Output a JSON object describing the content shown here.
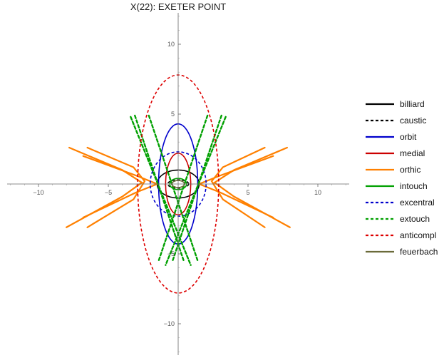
{
  "chart_data": {
    "type": "line",
    "title": "X(22): EXETER POINT",
    "xlabel": "",
    "ylabel": "",
    "xlim": [
      -12.3,
      12.0
    ],
    "ylim": [
      -12.3,
      12.3
    ],
    "x_ticks": [
      -10,
      -5,
      5,
      10
    ],
    "y_ticks": [
      10,
      5,
      -5,
      -10
    ],
    "x_tick_labels": [
      "−10",
      "−5",
      "5",
      "10"
    ],
    "y_tick_labels": [
      "10",
      "5",
      "−5",
      "−10"
    ],
    "grid": false,
    "legend_position": "right",
    "series": [
      {
        "name": "billiard",
        "color": "#000000",
        "dashed": false,
        "kind": "ellipse",
        "a": 1.5,
        "b": 1.0
      },
      {
        "name": "caustic",
        "color": "#000000",
        "dashed": true,
        "kind": "ellipse",
        "a": 0.75,
        "b": 0.3
      },
      {
        "name": "orbit",
        "color": "#0000cc",
        "dashed": false,
        "kind": "ellipse",
        "a": 1.4,
        "b": 4.3
      },
      {
        "name": "medial",
        "color": "#cc0000",
        "dashed": false,
        "kind": "ellipse",
        "a": 0.9,
        "b": 2.2
      },
      {
        "name": "orthic",
        "color": "#ff8000",
        "dashed": false,
        "kind": "orthic"
      },
      {
        "name": "intouch",
        "color": "#00a000",
        "dashed": false,
        "kind": "ellipse",
        "a": 0.6,
        "b": 0.4
      },
      {
        "name": "excentral",
        "color": "#0000cc",
        "dashed": true,
        "kind": "ellipse",
        "a": 2.0,
        "b": 2.3
      },
      {
        "name": "extouch",
        "color": "#00a000",
        "dashed": true,
        "kind": "extouch"
      },
      {
        "name": "anticompl",
        "color": "#dd0000",
        "dashed": true,
        "kind": "ellipse",
        "a": 2.9,
        "b": 7.8
      },
      {
        "name": "feuerbach",
        "color": "#6b6b3a",
        "dashed": false,
        "kind": "ellipse",
        "a": 0.45,
        "b": 0.25
      }
    ]
  }
}
